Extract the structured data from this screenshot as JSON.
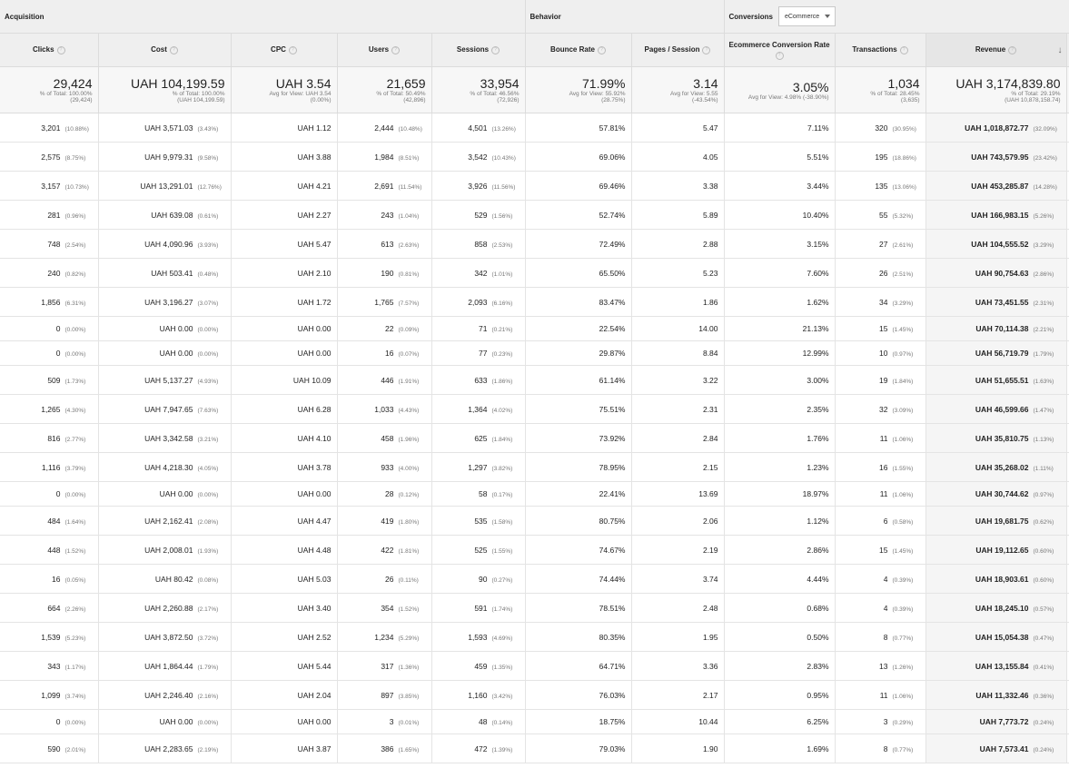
{
  "groups": {
    "acquisition": "Acquisition",
    "behavior": "Behavior",
    "conversions": "Conversions",
    "dropdown_value": "eCommerce"
  },
  "headers": {
    "clicks": "Clicks",
    "cost": "Cost",
    "cpc": "CPC",
    "users": "Users",
    "sessions": "Sessions",
    "bounce_rate": "Bounce Rate",
    "pages_session": "Pages / Session",
    "ecr": "Ecommerce Conversion Rate",
    "transactions": "Transactions",
    "revenue": "Revenue"
  },
  "help_glyph": "?",
  "sort_glyph": "↓",
  "totals": {
    "clicks": {
      "value": "29,424",
      "sub1": "% of Total: 100.00%",
      "sub2": "(29,424)"
    },
    "cost": {
      "value": "UAH 104,199.59",
      "sub1": "% of Total: 100.00%",
      "sub2": "(UAH 104,199.59)"
    },
    "cpc": {
      "value": "UAH 3.54",
      "sub1": "Avg for View: UAH 3.54",
      "sub2": "(0.00%)"
    },
    "users": {
      "value": "21,659",
      "sub1": "% of Total: 50.49%",
      "sub2": "(42,896)"
    },
    "sessions": {
      "value": "33,954",
      "sub1": "% of Total: 46.56%",
      "sub2": "(72,926)"
    },
    "bounce_rate": {
      "value": "71.99%",
      "sub1": "Avg for View: 55.92%",
      "sub2": "(28.75%)"
    },
    "pages_session": {
      "value": "3.14",
      "sub1": "Avg for View: 5.55",
      "sub2": "(-43.54%)"
    },
    "ecr": {
      "value": "3.05%",
      "sub1": "Avg for View: 4.98% (-38.90%)",
      "sub2": ""
    },
    "transactions": {
      "value": "1,034",
      "sub1": "% of Total: 28.45%",
      "sub2": "(3,635)"
    },
    "revenue": {
      "value": "UAH 3,174,839.80",
      "sub1": "% of Total: 29.19%",
      "sub2": "(UAH 10,878,158.74)"
    }
  },
  "rows": [
    {
      "h": "h32",
      "clicks": "3,201",
      "clicks_pct": "(10.88%)",
      "cost": "UAH 3,571.03",
      "cost_pct": "(3.43%)",
      "cpc": "UAH 1.12",
      "users": "2,444",
      "users_pct": "(10.48%)",
      "sessions": "4,501",
      "sessions_pct": "(13.26%)",
      "bounce": "57.81%",
      "pps": "5.47",
      "ecr": "7.11%",
      "trans": "320",
      "trans_pct": "(30.95%)",
      "rev": "UAH 1,018,872.77",
      "rev_pct": "(32.09%)"
    },
    {
      "h": "h32",
      "clicks": "2,575",
      "clicks_pct": "(8.75%)",
      "cost": "UAH 9,979.31",
      "cost_pct": "(9.58%)",
      "cpc": "UAH 3.88",
      "users": "1,984",
      "users_pct": "(8.51%)",
      "sessions": "3,542",
      "sessions_pct": "(10.43%)",
      "bounce": "69.06%",
      "pps": "4.05",
      "ecr": "5.51%",
      "trans": "195",
      "trans_pct": "(18.86%)",
      "rev": "UAH 743,579.95",
      "rev_pct": "(23.42%)"
    },
    {
      "h": "h32",
      "clicks": "3,157",
      "clicks_pct": "(10.73%)",
      "cost": "UAH 13,291.01",
      "cost_pct": "(12.76%)",
      "cpc": "UAH 4.21",
      "users": "2,691",
      "users_pct": "(11.54%)",
      "sessions": "3,926",
      "sessions_pct": "(11.56%)",
      "bounce": "69.46%",
      "pps": "3.38",
      "ecr": "3.44%",
      "trans": "135",
      "trans_pct": "(13.06%)",
      "rev": "UAH 453,285.87",
      "rev_pct": "(14.28%)"
    },
    {
      "h": "h32",
      "clicks": "281",
      "clicks_pct": "(0.96%)",
      "cost": "UAH 639.08",
      "cost_pct": "(0.61%)",
      "cpc": "UAH 2.27",
      "users": "243",
      "users_pct": "(1.04%)",
      "sessions": "529",
      "sessions_pct": "(1.56%)",
      "bounce": "52.74%",
      "pps": "5.89",
      "ecr": "10.40%",
      "trans": "55",
      "trans_pct": "(5.32%)",
      "rev": "UAH 166,983.15",
      "rev_pct": "(5.26%)"
    },
    {
      "h": "h32",
      "clicks": "748",
      "clicks_pct": "(2.54%)",
      "cost": "UAH 4,090.96",
      "cost_pct": "(3.93%)",
      "cpc": "UAH 5.47",
      "users": "613",
      "users_pct": "(2.63%)",
      "sessions": "858",
      "sessions_pct": "(2.53%)",
      "bounce": "72.49%",
      "pps": "2.88",
      "ecr": "3.15%",
      "trans": "27",
      "trans_pct": "(2.61%)",
      "rev": "UAH 104,555.52",
      "rev_pct": "(3.29%)"
    },
    {
      "h": "h32",
      "clicks": "240",
      "clicks_pct": "(0.82%)",
      "cost": "UAH 503.41",
      "cost_pct": "(0.48%)",
      "cpc": "UAH 2.10",
      "users": "190",
      "users_pct": "(0.81%)",
      "sessions": "342",
      "sessions_pct": "(1.01%)",
      "bounce": "65.50%",
      "pps": "5.23",
      "ecr": "7.60%",
      "trans": "26",
      "trans_pct": "(2.51%)",
      "rev": "UAH 90,754.63",
      "rev_pct": "(2.86%)"
    },
    {
      "h": "h32",
      "clicks": "1,856",
      "clicks_pct": "(6.31%)",
      "cost": "UAH 3,196.27",
      "cost_pct": "(3.07%)",
      "cpc": "UAH 1.72",
      "users": "1,765",
      "users_pct": "(7.57%)",
      "sessions": "2,093",
      "sessions_pct": "(6.16%)",
      "bounce": "83.47%",
      "pps": "1.86",
      "ecr": "1.62%",
      "trans": "34",
      "trans_pct": "(3.29%)",
      "rev": "UAH 73,451.55",
      "rev_pct": "(2.31%)"
    },
    {
      "h": "h26",
      "clicks": "0",
      "clicks_pct": "(0.00%)",
      "cost": "UAH 0.00",
      "cost_pct": "(0.00%)",
      "cpc": "UAH 0.00",
      "users": "22",
      "users_pct": "(0.09%)",
      "sessions": "71",
      "sessions_pct": "(0.21%)",
      "bounce": "22.54%",
      "pps": "14.00",
      "ecr": "21.13%",
      "trans": "15",
      "trans_pct": "(1.45%)",
      "rev": "UAH 70,114.38",
      "rev_pct": "(2.21%)"
    },
    {
      "h": "h26",
      "clicks": "0",
      "clicks_pct": "(0.00%)",
      "cost": "UAH 0.00",
      "cost_pct": "(0.00%)",
      "cpc": "UAH 0.00",
      "users": "16",
      "users_pct": "(0.07%)",
      "sessions": "77",
      "sessions_pct": "(0.23%)",
      "bounce": "29.87%",
      "pps": "8.84",
      "ecr": "12.99%",
      "trans": "10",
      "trans_pct": "(0.97%)",
      "rev": "UAH 56,719.79",
      "rev_pct": "(1.79%)"
    },
    {
      "h": "h32",
      "clicks": "509",
      "clicks_pct": "(1.73%)",
      "cost": "UAH 5,137.27",
      "cost_pct": "(4.93%)",
      "cpc": "UAH 10.09",
      "users": "446",
      "users_pct": "(1.91%)",
      "sessions": "633",
      "sessions_pct": "(1.86%)",
      "bounce": "61.14%",
      "pps": "3.22",
      "ecr": "3.00%",
      "trans": "19",
      "trans_pct": "(1.84%)",
      "rev": "UAH 51,655.51",
      "rev_pct": "(1.63%)"
    },
    {
      "h": "h32",
      "clicks": "1,265",
      "clicks_pct": "(4.30%)",
      "cost": "UAH 7,947.65",
      "cost_pct": "(7.63%)",
      "cpc": "UAH 6.28",
      "users": "1,033",
      "users_pct": "(4.43%)",
      "sessions": "1,364",
      "sessions_pct": "(4.02%)",
      "bounce": "75.51%",
      "pps": "2.31",
      "ecr": "2.35%",
      "trans": "32",
      "trans_pct": "(3.09%)",
      "rev": "UAH 46,599.66",
      "rev_pct": "(1.47%)"
    },
    {
      "h": "h32",
      "clicks": "816",
      "clicks_pct": "(2.77%)",
      "cost": "UAH 3,342.58",
      "cost_pct": "(3.21%)",
      "cpc": "UAH 4.10",
      "users": "458",
      "users_pct": "(1.96%)",
      "sessions": "625",
      "sessions_pct": "(1.84%)",
      "bounce": "73.92%",
      "pps": "2.84",
      "ecr": "1.76%",
      "trans": "11",
      "trans_pct": "(1.06%)",
      "rev": "UAH 35,810.75",
      "rev_pct": "(1.13%)"
    },
    {
      "h": "h32",
      "clicks": "1,116",
      "clicks_pct": "(3.79%)",
      "cost": "UAH 4,218.30",
      "cost_pct": "(4.05%)",
      "cpc": "UAH 3.78",
      "users": "933",
      "users_pct": "(4.00%)",
      "sessions": "1,297",
      "sessions_pct": "(3.82%)",
      "bounce": "78.95%",
      "pps": "2.15",
      "ecr": "1.23%",
      "trans": "16",
      "trans_pct": "(1.55%)",
      "rev": "UAH 35,268.02",
      "rev_pct": "(1.11%)"
    },
    {
      "h": "h26",
      "clicks": "0",
      "clicks_pct": "(0.00%)",
      "cost": "UAH 0.00",
      "cost_pct": "(0.00%)",
      "cpc": "UAH 0.00",
      "users": "28",
      "users_pct": "(0.12%)",
      "sessions": "58",
      "sessions_pct": "(0.17%)",
      "bounce": "22.41%",
      "pps": "13.69",
      "ecr": "18.97%",
      "trans": "11",
      "trans_pct": "(1.06%)",
      "rev": "UAH 30,744.62",
      "rev_pct": "(0.97%)"
    },
    {
      "h": "h32",
      "clicks": "484",
      "clicks_pct": "(1.64%)",
      "cost": "UAH 2,162.41",
      "cost_pct": "(2.08%)",
      "cpc": "UAH 4.47",
      "users": "419",
      "users_pct": "(1.80%)",
      "sessions": "535",
      "sessions_pct": "(1.58%)",
      "bounce": "80.75%",
      "pps": "2.06",
      "ecr": "1.12%",
      "trans": "6",
      "trans_pct": "(0.58%)",
      "rev": "UAH 19,681.75",
      "rev_pct": "(0.62%)"
    },
    {
      "h": "h32",
      "clicks": "448",
      "clicks_pct": "(1.52%)",
      "cost": "UAH 2,008.01",
      "cost_pct": "(1.93%)",
      "cpc": "UAH 4.48",
      "users": "422",
      "users_pct": "(1.81%)",
      "sessions": "525",
      "sessions_pct": "(1.55%)",
      "bounce": "74.67%",
      "pps": "2.19",
      "ecr": "2.86%",
      "trans": "15",
      "trans_pct": "(1.45%)",
      "rev": "UAH 19,112.65",
      "rev_pct": "(0.60%)"
    },
    {
      "h": "h32",
      "clicks": "16",
      "clicks_pct": "(0.05%)",
      "cost": "UAH 80.42",
      "cost_pct": "(0.08%)",
      "cpc": "UAH 5.03",
      "users": "26",
      "users_pct": "(0.11%)",
      "sessions": "90",
      "sessions_pct": "(0.27%)",
      "bounce": "74.44%",
      "pps": "3.74",
      "ecr": "4.44%",
      "trans": "4",
      "trans_pct": "(0.39%)",
      "rev": "UAH 18,903.61",
      "rev_pct": "(0.60%)"
    },
    {
      "h": "h32",
      "clicks": "664",
      "clicks_pct": "(2.26%)",
      "cost": "UAH 2,260.88",
      "cost_pct": "(2.17%)",
      "cpc": "UAH 3.40",
      "users": "354",
      "users_pct": "(1.52%)",
      "sessions": "591",
      "sessions_pct": "(1.74%)",
      "bounce": "78.51%",
      "pps": "2.48",
      "ecr": "0.68%",
      "trans": "4",
      "trans_pct": "(0.39%)",
      "rev": "UAH 18,245.10",
      "rev_pct": "(0.57%)"
    },
    {
      "h": "h32",
      "clicks": "1,539",
      "clicks_pct": "(5.23%)",
      "cost": "UAH 3,872.50",
      "cost_pct": "(3.72%)",
      "cpc": "UAH 2.52",
      "users": "1,234",
      "users_pct": "(5.29%)",
      "sessions": "1,593",
      "sessions_pct": "(4.69%)",
      "bounce": "80.35%",
      "pps": "1.95",
      "ecr": "0.50%",
      "trans": "8",
      "trans_pct": "(0.77%)",
      "rev": "UAH 15,054.38",
      "rev_pct": "(0.47%)"
    },
    {
      "h": "h32",
      "clicks": "343",
      "clicks_pct": "(1.17%)",
      "cost": "UAH 1,864.44",
      "cost_pct": "(1.79%)",
      "cpc": "UAH 5.44",
      "users": "317",
      "users_pct": "(1.36%)",
      "sessions": "459",
      "sessions_pct": "(1.35%)",
      "bounce": "64.71%",
      "pps": "3.36",
      "ecr": "2.83%",
      "trans": "13",
      "trans_pct": "(1.26%)",
      "rev": "UAH 13,155.84",
      "rev_pct": "(0.41%)"
    },
    {
      "h": "h32",
      "clicks": "1,099",
      "clicks_pct": "(3.74%)",
      "cost": "UAH 2,246.40",
      "cost_pct": "(2.16%)",
      "cpc": "UAH 2.04",
      "users": "897",
      "users_pct": "(3.85%)",
      "sessions": "1,160",
      "sessions_pct": "(3.42%)",
      "bounce": "76.03%",
      "pps": "2.17",
      "ecr": "0.95%",
      "trans": "11",
      "trans_pct": "(1.06%)",
      "rev": "UAH 11,332.46",
      "rev_pct": "(0.36%)"
    },
    {
      "h": "h26",
      "clicks": "0",
      "clicks_pct": "(0.00%)",
      "cost": "UAH 0.00",
      "cost_pct": "(0.00%)",
      "cpc": "UAH 0.00",
      "users": "3",
      "users_pct": "(0.01%)",
      "sessions": "48",
      "sessions_pct": "(0.14%)",
      "bounce": "18.75%",
      "pps": "10.44",
      "ecr": "6.25%",
      "trans": "3",
      "trans_pct": "(0.29%)",
      "rev": "UAH 7,773.72",
      "rev_pct": "(0.24%)"
    },
    {
      "h": "h32",
      "clicks": "590",
      "clicks_pct": "(2.01%)",
      "cost": "UAH 2,283.65",
      "cost_pct": "(2.19%)",
      "cpc": "UAH 3.87",
      "users": "386",
      "users_pct": "(1.65%)",
      "sessions": "472",
      "sessions_pct": "(1.39%)",
      "bounce": "79.03%",
      "pps": "1.90",
      "ecr": "1.69%",
      "trans": "8",
      "trans_pct": "(0.77%)",
      "rev": "UAH 7,573.41",
      "rev_pct": "(0.24%)"
    }
  ]
}
